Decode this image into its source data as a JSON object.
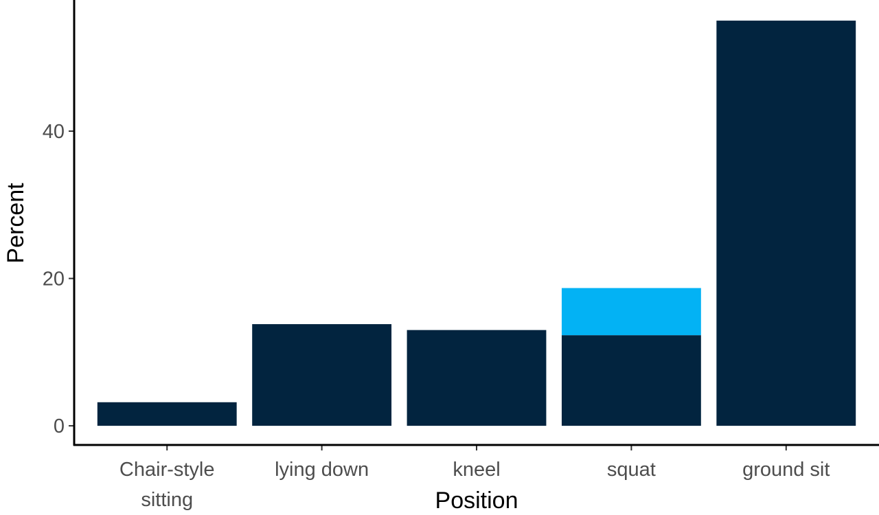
{
  "chart_data": {
    "type": "stacked-bar",
    "x_label": "Position",
    "y_label": "Percent",
    "categories": [
      "Chair-style\nsitting",
      "lying down",
      "kneel",
      "squat",
      "ground sit"
    ],
    "series": [
      {
        "color": "#02243f",
        "values": [
          3.2,
          13.8,
          13.0,
          12.3,
          55.0
        ]
      },
      {
        "color": "#03b2f4",
        "values": [
          0,
          0,
          0,
          6.4,
          0
        ]
      }
    ],
    "ylim": [
      -2.6,
      57.8
    ],
    "yticks": [
      0,
      20,
      40
    ],
    "grid": false
  }
}
